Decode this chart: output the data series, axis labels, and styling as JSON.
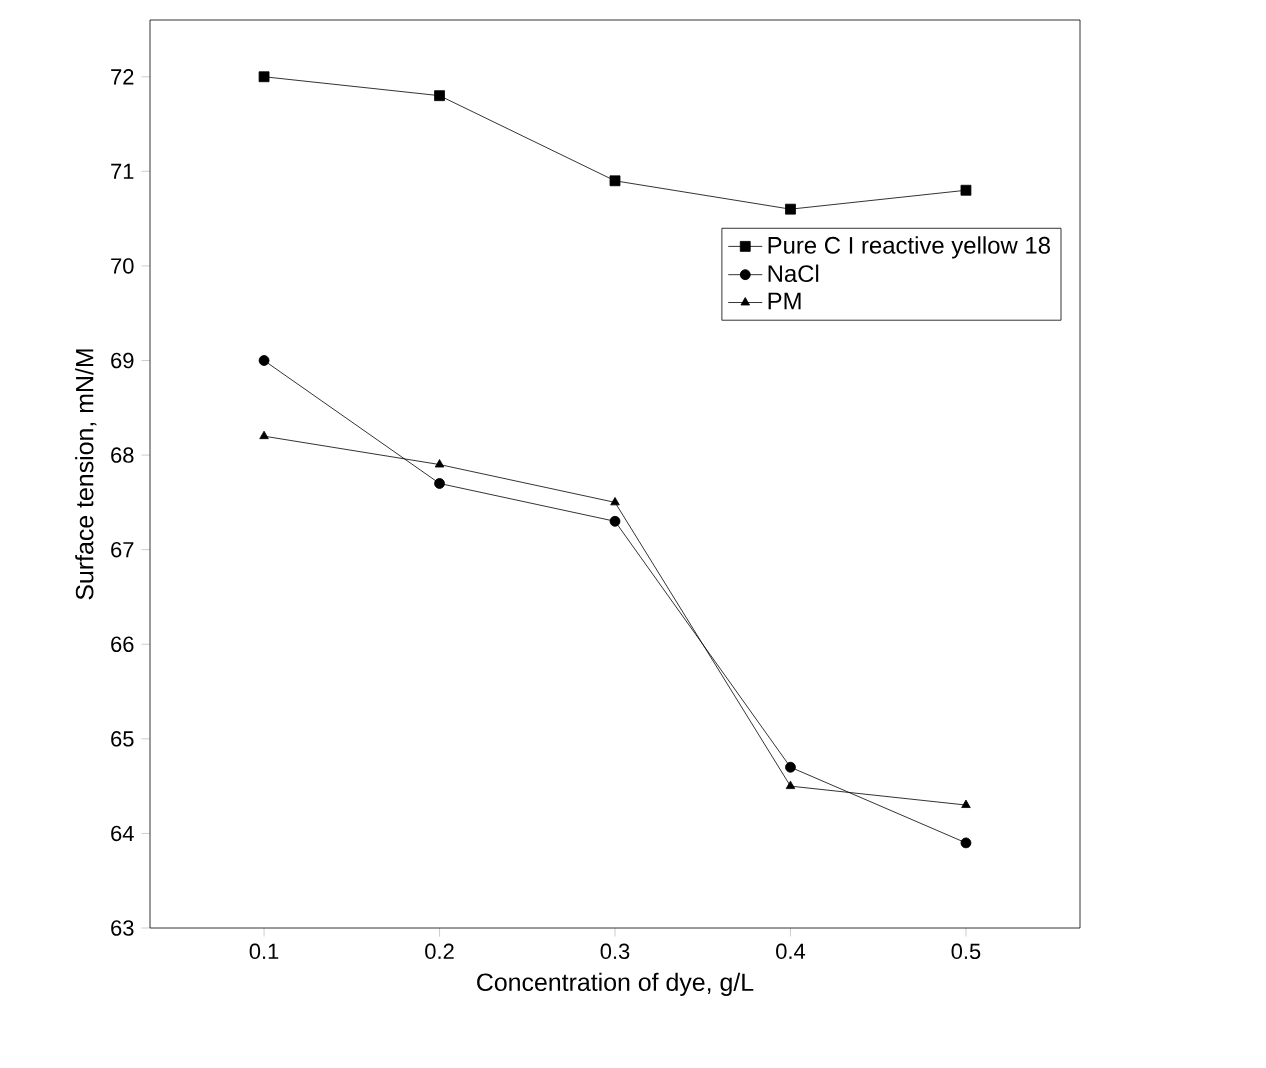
{
  "chart_data": {
    "type": "line",
    "xlabel": "Concentration of dye, g/L",
    "ylabel": "Surface tension, mN/M",
    "x": [
      0.1,
      0.2,
      0.3,
      0.4,
      0.5
    ],
    "series": [
      {
        "name": "Pure C I reactive yellow 18",
        "color": "#000000",
        "marker": "square",
        "values": [
          72.0,
          71.8,
          70.9,
          70.6,
          70.8
        ]
      },
      {
        "name": "NaCl",
        "color": "#000000",
        "marker": "circle",
        "values": [
          69.0,
          67.7,
          67.3,
          64.7,
          63.9
        ]
      },
      {
        "name": "PM",
        "color": "#000000",
        "marker": "triangle",
        "values": [
          68.2,
          67.9,
          67.5,
          64.5,
          64.3
        ]
      }
    ],
    "xlim": [
      0.035,
      0.565
    ],
    "ylim": [
      63,
      72.6
    ],
    "xticks": [
      0.1,
      0.2,
      0.3,
      0.4,
      0.5
    ],
    "yticks": [
      63,
      64,
      65,
      66,
      67,
      68,
      69,
      70,
      71,
      72
    ],
    "legend": "right",
    "line_style": "solid",
    "grid": false
  }
}
